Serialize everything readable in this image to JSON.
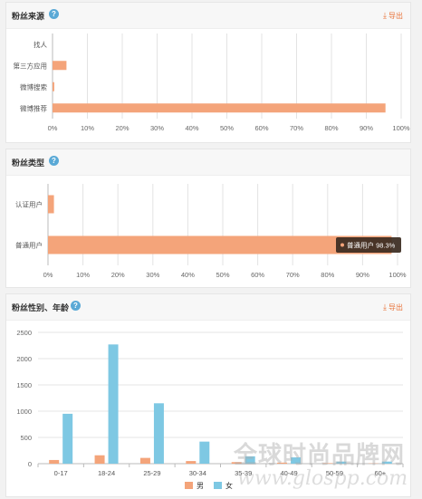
{
  "export_label": "导出",
  "panels": [
    {
      "title": "粉丝来源"
    },
    {
      "title": "粉丝类型"
    },
    {
      "title": "粉丝性别、年龄"
    }
  ],
  "colors": {
    "bar": "#f4a47a",
    "male": "#f4a47a",
    "female": "#7ec8e3",
    "accent": "#e8743b"
  },
  "chart_data": [
    {
      "type": "bar",
      "orientation": "horizontal",
      "categories": [
        "找人",
        "第三方应用",
        "微博搜索",
        "微博推荐"
      ],
      "values": [
        0.0,
        4.0,
        0.5,
        95.5
      ],
      "xlim": [
        0,
        100
      ],
      "ticks": [
        "0%",
        "10%",
        "20%",
        "30%",
        "40%",
        "50%",
        "60%",
        "70%",
        "80%",
        "90%",
        "100%"
      ]
    },
    {
      "type": "bar",
      "orientation": "horizontal",
      "categories": [
        "认证用户",
        "普通用户"
      ],
      "values": [
        1.7,
        98.3
      ],
      "xlim": [
        0,
        100
      ],
      "ticks": [
        "0%",
        "10%",
        "20%",
        "30%",
        "40%",
        "50%",
        "60%",
        "70%",
        "80%",
        "90%",
        "100%"
      ],
      "tooltip": "普通用户 98.3%"
    },
    {
      "type": "bar",
      "categories": [
        "0-17",
        "18-24",
        "25-29",
        "30-34",
        "35-39",
        "40-49",
        "50-59",
        "60+"
      ],
      "series": [
        {
          "name": "男",
          "values": [
            70,
            160,
            110,
            50,
            30,
            20,
            10,
            5
          ]
        },
        {
          "name": "女",
          "values": [
            950,
            2270,
            1150,
            420,
            140,
            120,
            40,
            40
          ]
        }
      ],
      "ylim": [
        0,
        2500
      ],
      "yticks": [
        "0",
        "500",
        "1000",
        "1500",
        "2000",
        "2500"
      ],
      "legend": "bottom-center"
    }
  ],
  "watermark": {
    "text": "全球时尚品牌网",
    "url": "www.glospp.com"
  }
}
